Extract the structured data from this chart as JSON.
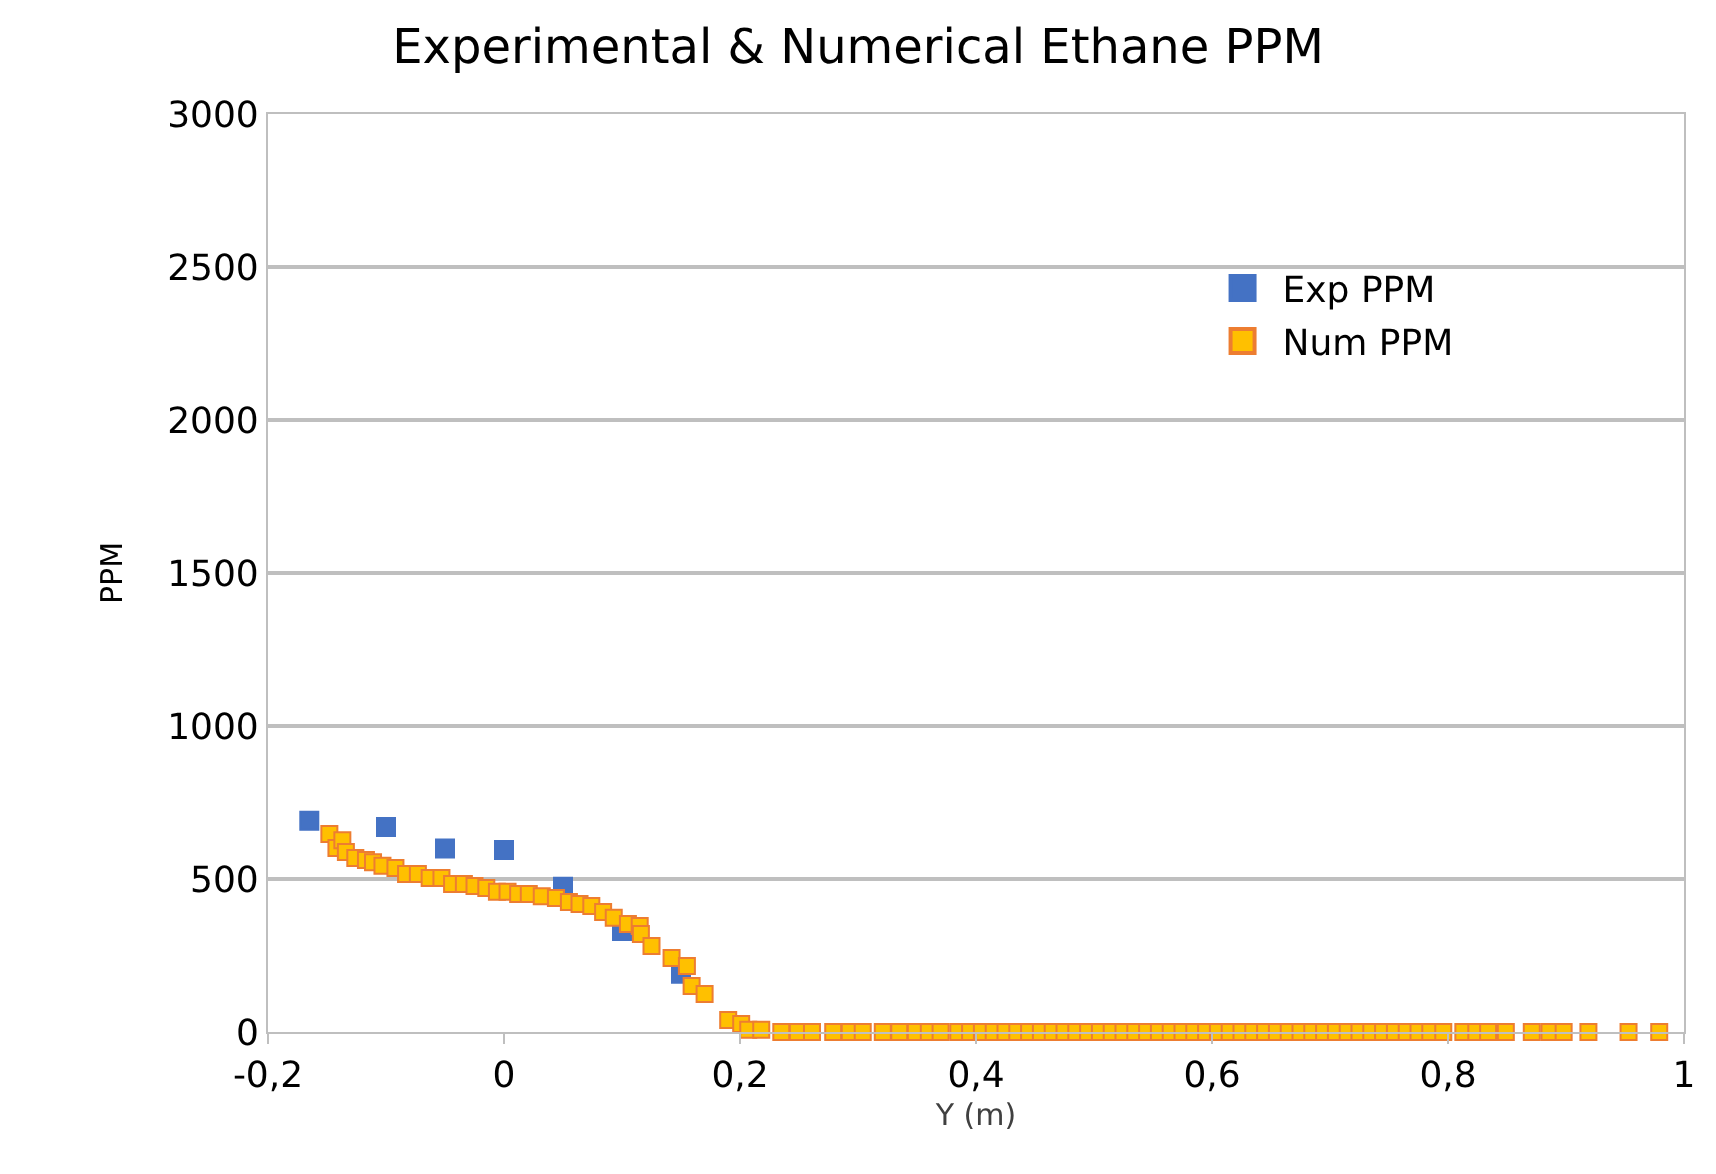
{
  "chart_data": {
    "type": "scatter",
    "title": "Experimental & Numerical Ethane PPM",
    "xlabel": "Y (m)",
    "ylabel": "PPM",
    "xlim": [
      -0.2,
      1
    ],
    "xticks": [
      {
        "value": -0.2,
        "label": "-0,2"
      },
      0,
      {
        "value": 0.2,
        "label": "0,2"
      },
      {
        "value": 0.4,
        "label": "0,4"
      },
      {
        "value": 0.6,
        "label": "0,6"
      },
      {
        "value": 0.8,
        "label": "0,8"
      },
      1
    ],
    "ylim": [
      0,
      3000
    ],
    "yticks": [
      0,
      500,
      1000,
      1500,
      2000,
      2500,
      3000
    ],
    "grid": "y",
    "legend": "top right",
    "marker": "square",
    "series": [
      {
        "name": "Exp PPM",
        "color": "#4472c4",
        "x": [
          -0.165,
          -0.1,
          -0.05,
          0,
          0.05,
          0.1,
          0.15
        ],
        "values": [
          690,
          670,
          600,
          595,
          475,
          330,
          190
        ]
      },
      {
        "name": "Num PPM",
        "color": "#ffc000",
        "x": [
          -0.148,
          -0.142,
          -0.137,
          -0.134,
          -0.126,
          -0.117,
          -0.111,
          -0.103,
          -0.092,
          -0.083,
          -0.073,
          -0.063,
          -0.053,
          -0.044,
          -0.034,
          -0.025,
          -0.015,
          -0.006,
          0.003,
          0.012,
          0.021,
          0.032,
          0.044,
          0.055,
          0.064,
          0.074,
          0.084,
          0.093,
          0.105,
          0.115,
          0.116,
          0.125,
          0.142,
          0.155,
          0.159,
          0.17,
          0.19,
          0.201,
          0.207,
          0.218,
          0.235,
          0.249,
          0.261,
          0.279,
          0.293,
          0.304,
          0.321,
          0.335,
          0.349,
          0.36,
          0.37,
          0.385,
          0.395,
          0.405,
          0.415,
          0.425,
          0.435,
          0.445,
          0.455,
          0.465,
          0.475,
          0.485,
          0.495,
          0.505,
          0.515,
          0.525,
          0.535,
          0.545,
          0.555,
          0.565,
          0.575,
          0.585,
          0.595,
          0.605,
          0.615,
          0.625,
          0.635,
          0.645,
          0.655,
          0.665,
          0.675,
          0.685,
          0.695,
          0.705,
          0.715,
          0.725,
          0.735,
          0.745,
          0.755,
          0.765,
          0.775,
          0.785,
          0.796,
          0.813,
          0.824,
          0.834,
          0.849,
          0.871,
          0.886,
          0.898,
          0.919,
          0.953,
          0.979
        ],
        "values": [
          647,
          601,
          627,
          588,
          569,
          562,
          555,
          543,
          536,
          516,
          516,
          503,
          503,
          484,
          484,
          477,
          471,
          458,
          458,
          451,
          451,
          444,
          438,
          425,
          418,
          412,
          392,
          373,
          353,
          346,
          320,
          281,
          242,
          216,
          150,
          124,
          39,
          26,
          7,
          7,
          0,
          0,
          0,
          0,
          0,
          0,
          0,
          0,
          0,
          0,
          0,
          0,
          0,
          0,
          0,
          0,
          0,
          0,
          0,
          0,
          0,
          0,
          0,
          0,
          0,
          0,
          0,
          0,
          0,
          0,
          0,
          0,
          0,
          0,
          0,
          0,
          0,
          0,
          0,
          0,
          0,
          0,
          0,
          0,
          0,
          0,
          0,
          0,
          0,
          0,
          0,
          0,
          0,
          0,
          0,
          0,
          0,
          0,
          0,
          0,
          0,
          0,
          0
        ]
      }
    ]
  }
}
